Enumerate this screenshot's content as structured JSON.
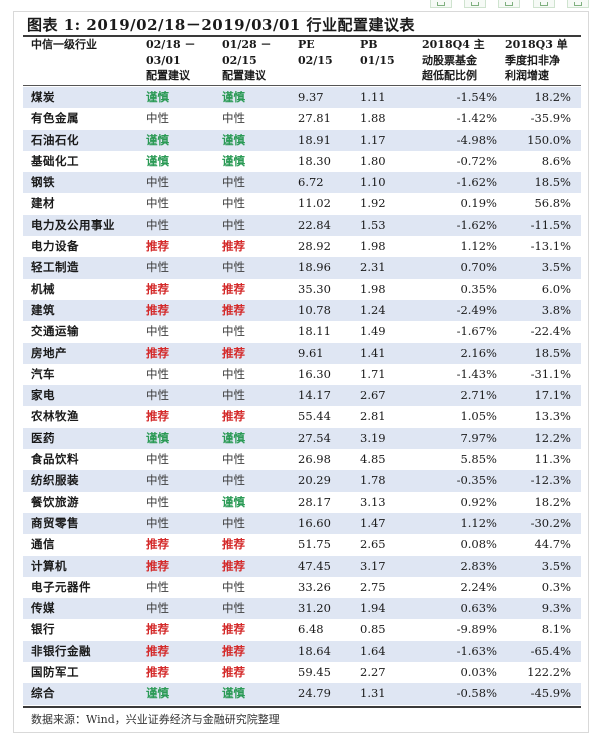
{
  "title": "图表 1: 2019/02/18－2019/03/01 行业配置建议表",
  "headers": {
    "industry": [
      "中信一级行业"
    ],
    "rec1": [
      "02/18 －",
      "03/01",
      "配置建议"
    ],
    "rec2": [
      "01/28 －",
      "02/15",
      "配置建议"
    ],
    "pe": [
      "PE",
      "02/15"
    ],
    "pb": [
      "PB",
      "01/15"
    ],
    "pct": [
      "2018Q4 主",
      "动股票基金",
      "超低配比例"
    ],
    "growth": [
      "2018Q3 单",
      "季度扣非净",
      "利润增速"
    ]
  },
  "colors": {
    "recommend": "#d42a2a",
    "cautious": "#2a9a55",
    "neutral": "#3b3b3b",
    "row_alt": "#dfe6f3"
  },
  "rows": [
    {
      "industry": "煤炭",
      "rec1": "谨慎",
      "rec2": "谨慎",
      "pe": "9.37",
      "pb": "1.11",
      "pct": "-1.54%",
      "growth": "18.2%"
    },
    {
      "industry": "有色金属",
      "rec1": "中性",
      "rec2": "中性",
      "pe": "27.81",
      "pb": "1.88",
      "pct": "-1.42%",
      "growth": "-35.9%"
    },
    {
      "industry": "石油石化",
      "rec1": "谨慎",
      "rec2": "谨慎",
      "pe": "18.91",
      "pb": "1.17",
      "pct": "-4.98%",
      "growth": "150.0%"
    },
    {
      "industry": "基础化工",
      "rec1": "谨慎",
      "rec2": "谨慎",
      "pe": "18.30",
      "pb": "1.80",
      "pct": "-0.72%",
      "growth": "8.6%"
    },
    {
      "industry": "钢铁",
      "rec1": "中性",
      "rec2": "中性",
      "pe": "6.72",
      "pb": "1.10",
      "pct": "-1.62%",
      "growth": "18.5%"
    },
    {
      "industry": "建材",
      "rec1": "中性",
      "rec2": "中性",
      "pe": "11.02",
      "pb": "1.92",
      "pct": "0.19%",
      "growth": "56.8%"
    },
    {
      "industry": "电力及公用事业",
      "rec1": "中性",
      "rec2": "中性",
      "pe": "22.84",
      "pb": "1.53",
      "pct": "-1.62%",
      "growth": "-11.5%"
    },
    {
      "industry": "电力设备",
      "rec1": "推荐",
      "rec2": "推荐",
      "pe": "28.92",
      "pb": "1.98",
      "pct": "1.12%",
      "growth": "-13.1%"
    },
    {
      "industry": "轻工制造",
      "rec1": "中性",
      "rec2": "中性",
      "pe": "18.96",
      "pb": "2.31",
      "pct": "0.70%",
      "growth": "3.5%"
    },
    {
      "industry": "机械",
      "rec1": "推荐",
      "rec2": "推荐",
      "pe": "35.30",
      "pb": "1.98",
      "pct": "0.35%",
      "growth": "6.0%"
    },
    {
      "industry": "建筑",
      "rec1": "推荐",
      "rec2": "推荐",
      "pe": "10.78",
      "pb": "1.24",
      "pct": "-2.49%",
      "growth": "3.8%"
    },
    {
      "industry": "交通运输",
      "rec1": "中性",
      "rec2": "中性",
      "pe": "18.11",
      "pb": "1.49",
      "pct": "-1.67%",
      "growth": "-22.4%"
    },
    {
      "industry": "房地产",
      "rec1": "推荐",
      "rec2": "推荐",
      "pe": "9.61",
      "pb": "1.41",
      "pct": "2.16%",
      "growth": "18.5%"
    },
    {
      "industry": "汽车",
      "rec1": "中性",
      "rec2": "中性",
      "pe": "16.30",
      "pb": "1.71",
      "pct": "-1.43%",
      "growth": "-31.1%"
    },
    {
      "industry": "家电",
      "rec1": "中性",
      "rec2": "中性",
      "pe": "14.17",
      "pb": "2.67",
      "pct": "2.71%",
      "growth": "17.1%"
    },
    {
      "industry": "农林牧渔",
      "rec1": "推荐",
      "rec2": "推荐",
      "pe": "55.44",
      "pb": "2.81",
      "pct": "1.05%",
      "growth": "13.3%"
    },
    {
      "industry": "医药",
      "rec1": "谨慎",
      "rec2": "谨慎",
      "pe": "27.54",
      "pb": "3.19",
      "pct": "7.97%",
      "growth": "12.2%"
    },
    {
      "industry": "食品饮料",
      "rec1": "中性",
      "rec2": "中性",
      "pe": "26.98",
      "pb": "4.85",
      "pct": "5.85%",
      "growth": "11.3%"
    },
    {
      "industry": "纺织服装",
      "rec1": "中性",
      "rec2": "中性",
      "pe": "20.29",
      "pb": "1.78",
      "pct": "-0.35%",
      "growth": "-12.3%"
    },
    {
      "industry": "餐饮旅游",
      "rec1": "中性",
      "rec2": "谨慎",
      "pe": "28.17",
      "pb": "3.13",
      "pct": "0.92%",
      "growth": "18.2%"
    },
    {
      "industry": "商贸零售",
      "rec1": "中性",
      "rec2": "中性",
      "pe": "16.60",
      "pb": "1.47",
      "pct": "1.12%",
      "growth": "-30.2%"
    },
    {
      "industry": "通信",
      "rec1": "推荐",
      "rec2": "推荐",
      "pe": "51.75",
      "pb": "2.65",
      "pct": "0.08%",
      "growth": "44.7%"
    },
    {
      "industry": "计算机",
      "rec1": "推荐",
      "rec2": "推荐",
      "pe": "47.45",
      "pb": "3.17",
      "pct": "2.83%",
      "growth": "3.5%"
    },
    {
      "industry": "电子元器件",
      "rec1": "中性",
      "rec2": "中性",
      "pe": "33.26",
      "pb": "2.75",
      "pct": "2.24%",
      "growth": "0.3%"
    },
    {
      "industry": "传媒",
      "rec1": "中性",
      "rec2": "中性",
      "pe": "31.20",
      "pb": "1.94",
      "pct": "0.63%",
      "growth": "9.3%"
    },
    {
      "industry": "银行",
      "rec1": "推荐",
      "rec2": "推荐",
      "pe": "6.48",
      "pb": "0.85",
      "pct": "-9.89%",
      "growth": "8.1%"
    },
    {
      "industry": "非银行金融",
      "rec1": "推荐",
      "rec2": "推荐",
      "pe": "18.64",
      "pb": "1.64",
      "pct": "-1.63%",
      "growth": "-65.4%"
    },
    {
      "industry": "国防军工",
      "rec1": "推荐",
      "rec2": "推荐",
      "pe": "59.45",
      "pb": "2.27",
      "pct": "0.03%",
      "growth": "122.2%"
    },
    {
      "industry": "综合",
      "rec1": "谨慎",
      "rec2": "谨慎",
      "pe": "24.79",
      "pb": "1.31",
      "pct": "-0.58%",
      "growth": "-45.9%"
    }
  ],
  "source": "数据来源：Wind，兴业证券经济与金融研究院整理"
}
